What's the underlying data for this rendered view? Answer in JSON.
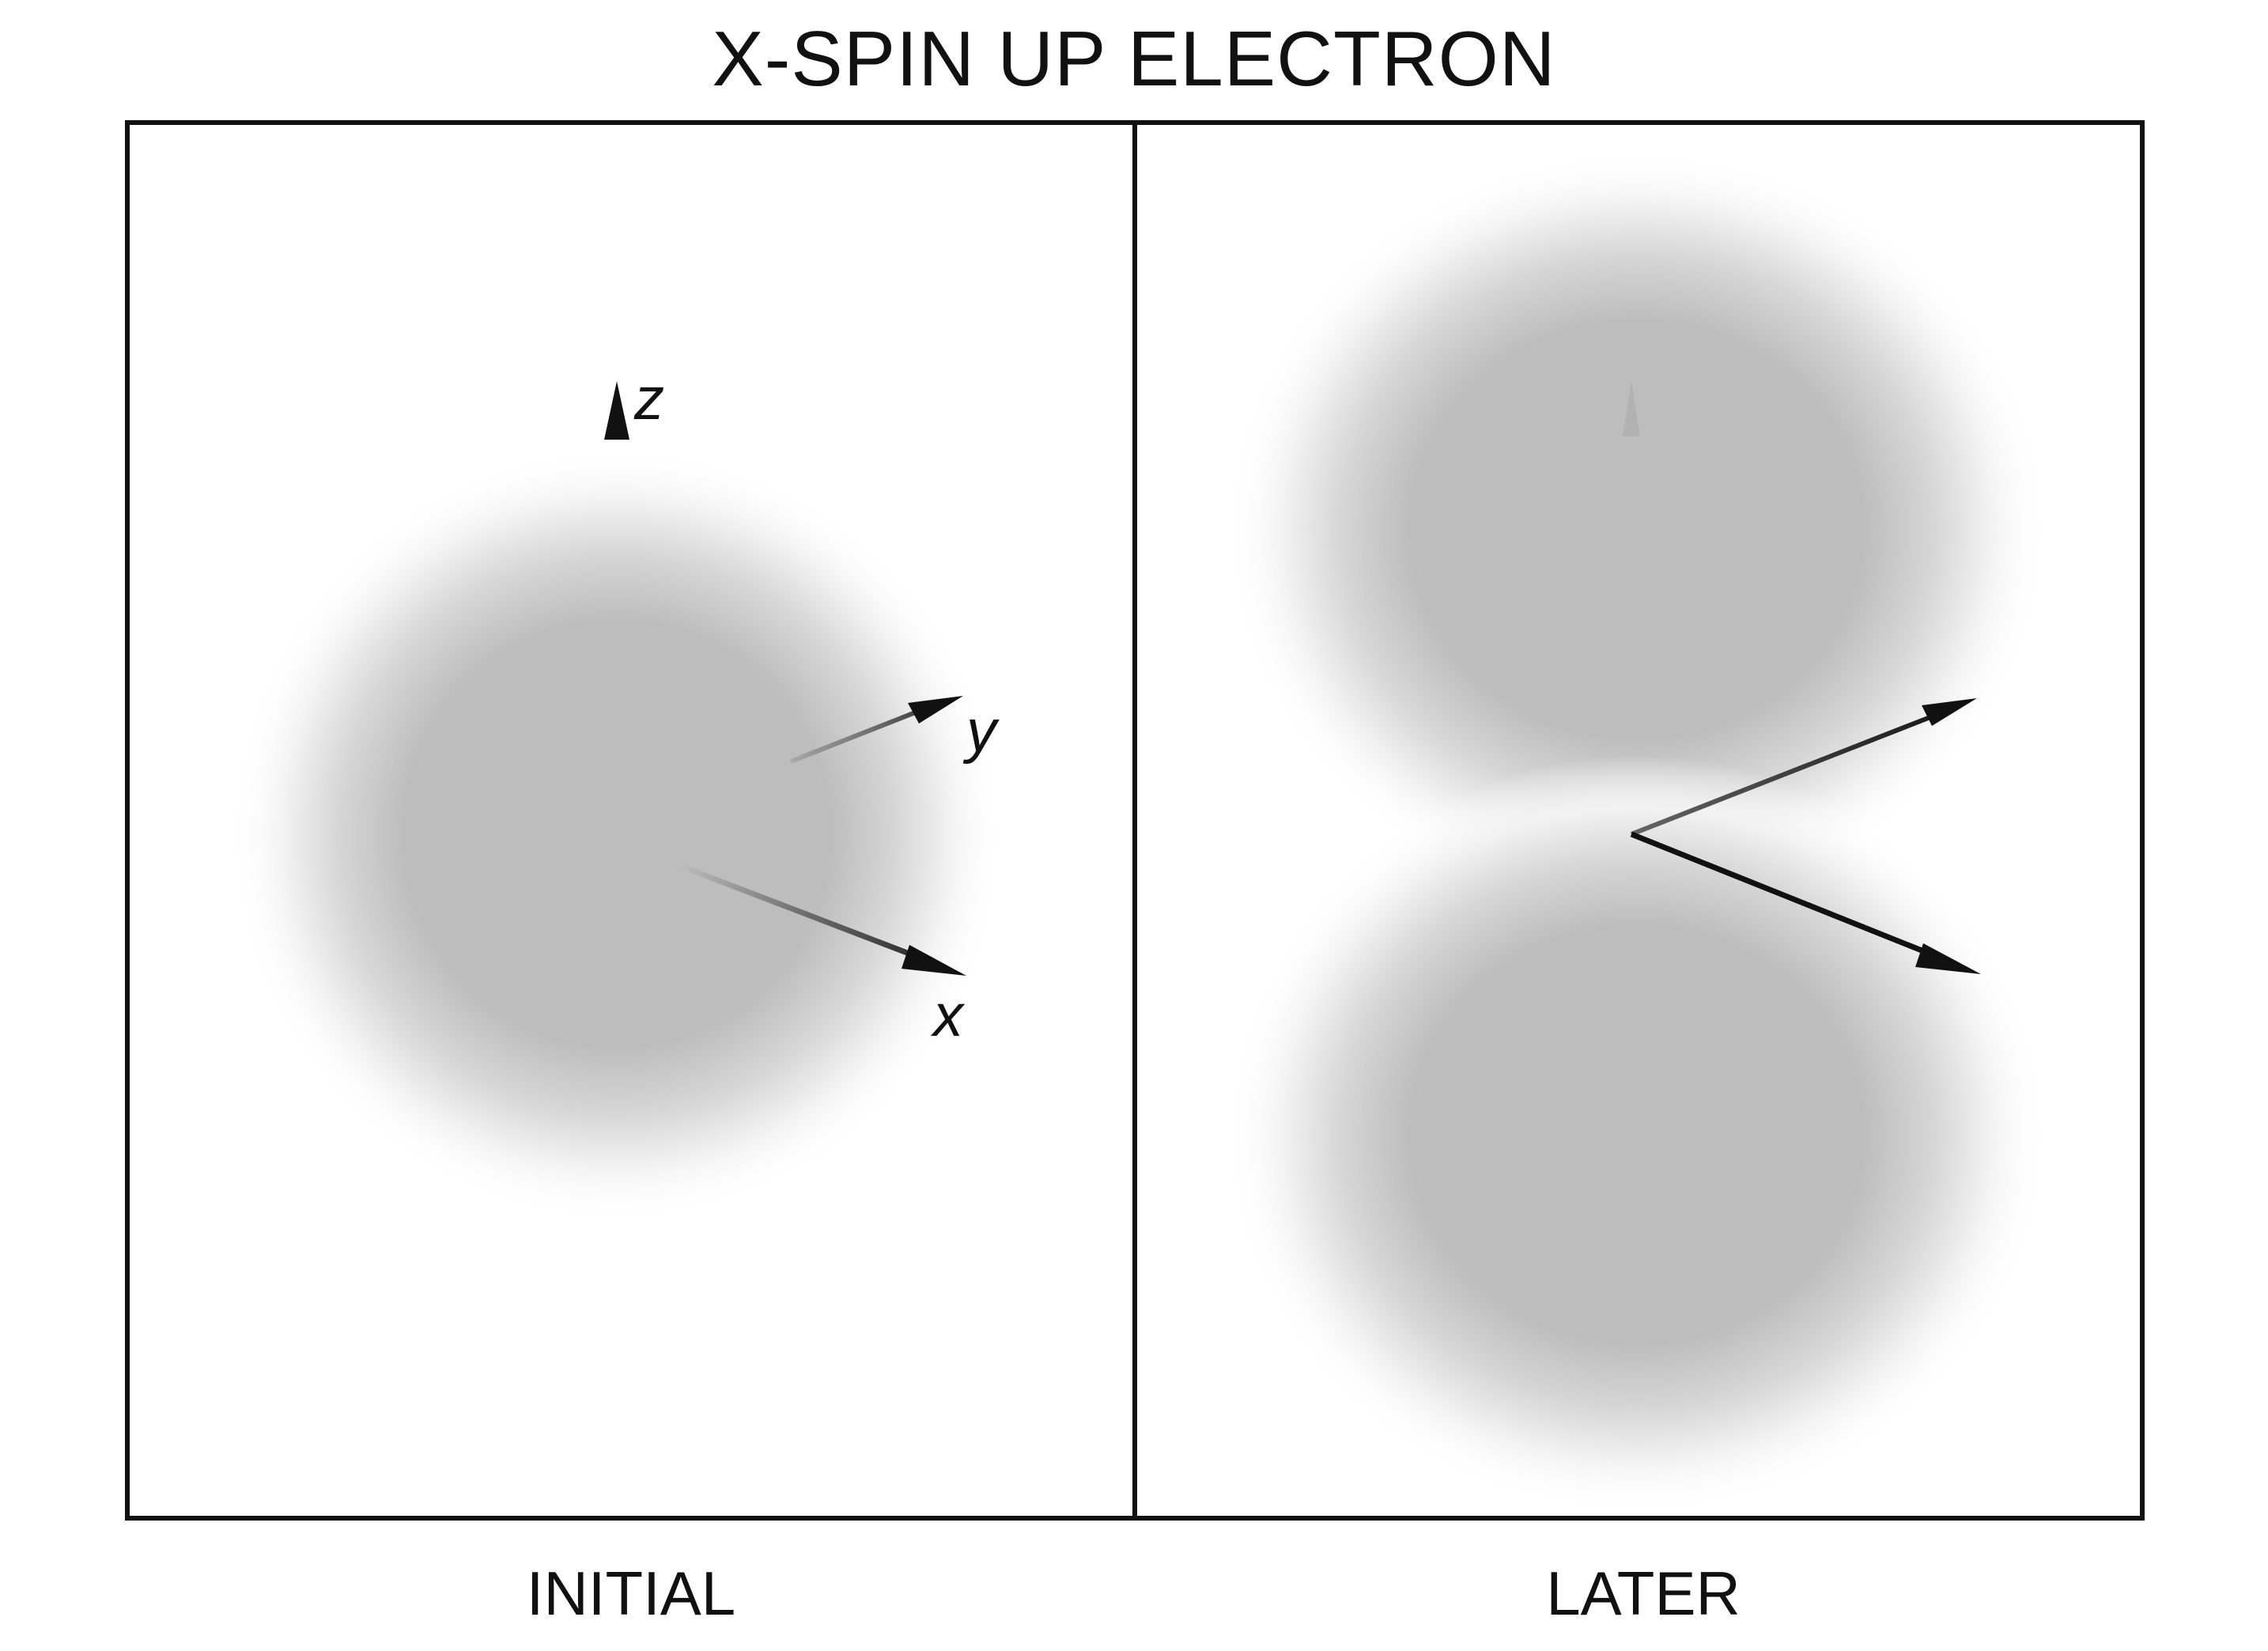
{
  "title": "X-SPIN UP ELECTRON",
  "panels": [
    {
      "caption": "INITIAL",
      "clouds": 1,
      "axes": {
        "z": "z",
        "y": "y",
        "x": "x"
      }
    },
    {
      "caption": "LATER",
      "clouds": 2,
      "axes": {
        "z": "",
        "y": "",
        "x": ""
      }
    }
  ],
  "colors": {
    "frame": "#111111",
    "cloud": "#bdbdbd",
    "background": "#ffffff"
  }
}
